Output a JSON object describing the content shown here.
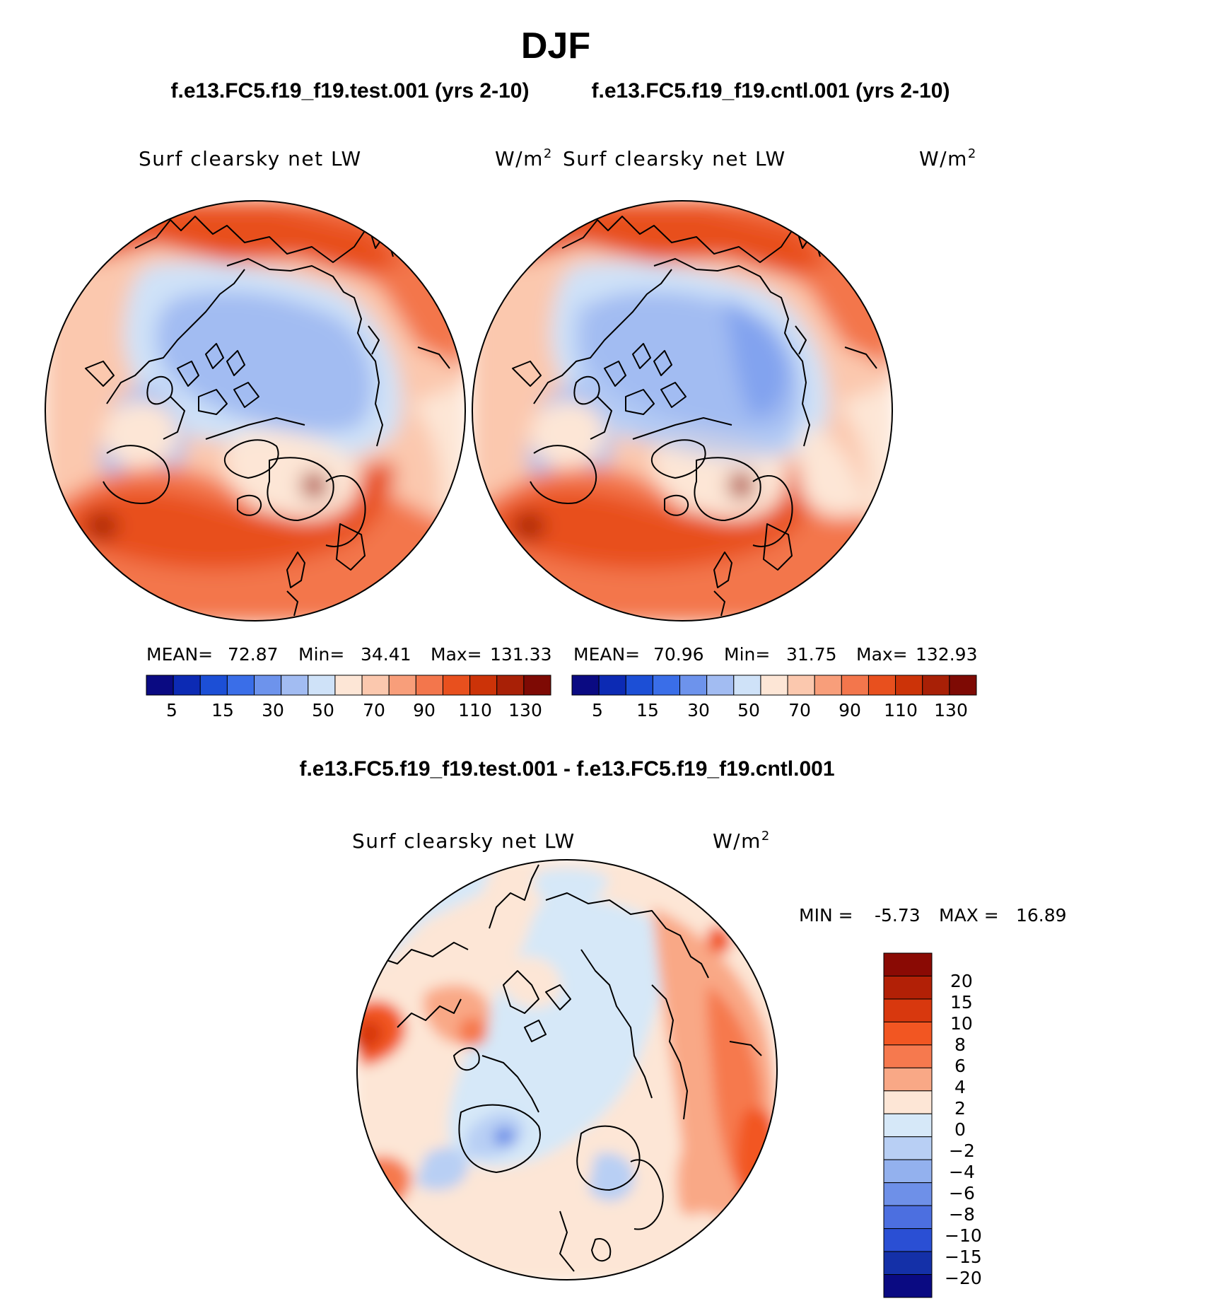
{
  "figure": {
    "season_title": "DJF",
    "diff_title": "f.e13.FC5.f19_f19.test.001 - f.e13.FC5.f19_f19.cntl.001"
  },
  "chart_data": [
    {
      "type": "heatmap",
      "projection": "north-polar-stereographic",
      "case_title": "f.e13.FC5.f19_f19.test.001 (yrs 2-10)",
      "variable": "Surf clearsky net LW",
      "units": "W/m",
      "units_exp": "2",
      "stats": {
        "mean_label": "MEAN=",
        "mean": "72.87",
        "min_label": "Min=",
        "min": "34.41",
        "max_label": "Max=",
        "max": "131.33"
      },
      "colorbar_ticks": [
        "5",
        "15",
        "30",
        "50",
        "70",
        "90",
        "110",
        "130"
      ]
    },
    {
      "type": "heatmap",
      "projection": "north-polar-stereographic",
      "case_title": "f.e13.FC5.f19_f19.cntl.001 (yrs 2-10)",
      "variable": "Surf clearsky net LW",
      "units": "W/m",
      "units_exp": "2",
      "stats": {
        "mean_label": "MEAN=",
        "mean": "70.96",
        "min_label": "Min=",
        "min": "31.75",
        "max_label": "Max=",
        "max": "132.93"
      },
      "colorbar_ticks": [
        "5",
        "15",
        "30",
        "50",
        "70",
        "90",
        "110",
        "130"
      ]
    },
    {
      "type": "heatmap",
      "projection": "north-polar-stereographic",
      "variable": "Surf clearsky net LW",
      "units": "W/m",
      "units_exp": "2",
      "minmax": {
        "min_label": "MIN =",
        "min": "-5.73",
        "max_label": "MAX =",
        "max": "16.89"
      },
      "colorbar_labels": [
        "20",
        "15",
        "10",
        "8",
        "6",
        "4",
        "2",
        "0",
        "−2",
        "−4",
        "−6",
        "−8",
        "−10",
        "−15",
        "−20"
      ]
    }
  ],
  "palettes": {
    "main": [
      "#0a0a82",
      "#0c2ab4",
      "#1c4fd6",
      "#3a6ee8",
      "#6d93ec",
      "#a2bcf2",
      "#cfe2f8",
      "#fde6d6",
      "#fbc8ae",
      "#f89e7a",
      "#f3764c",
      "#e8501e",
      "#cc3308",
      "#a82006",
      "#7e0a04"
    ],
    "diff": [
      "#8a0a04",
      "#b22006",
      "#d8380e",
      "#f25622",
      "#f6794e",
      "#f9a886",
      "#fde6d6",
      "#d6e8f8",
      "#b8cff4",
      "#93b1ee",
      "#6e90e8",
      "#4c6fe0",
      "#2a4fd4",
      "#1430a8",
      "#0a0a82"
    ]
  }
}
